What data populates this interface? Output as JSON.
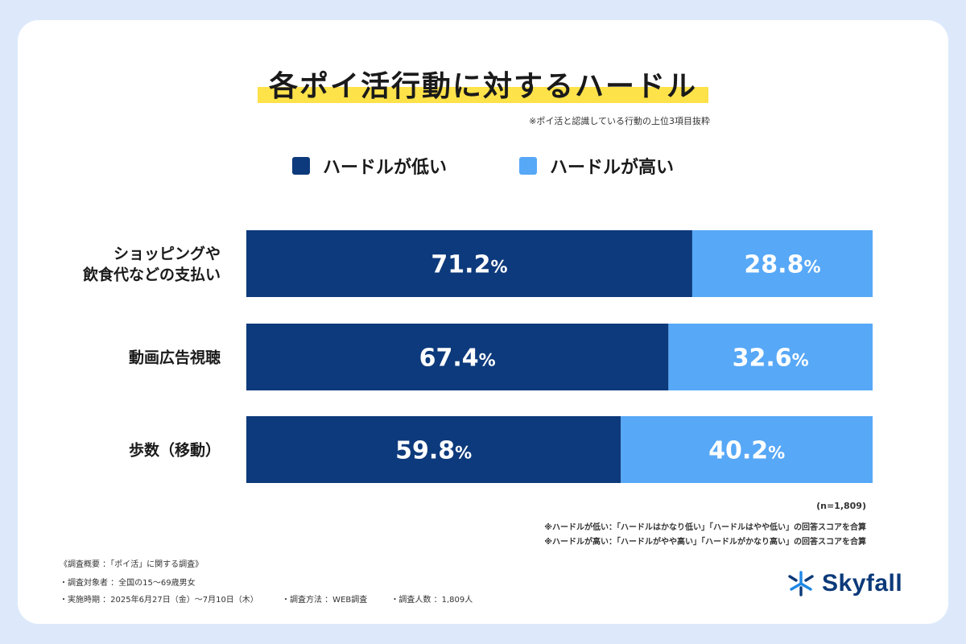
{
  "title": "各ポイ活行動に対するハードル",
  "subtitle": "※ポイ活と認識している行動の上位3項目抜粋",
  "colors": {
    "low": "#0d3a7c",
    "high": "#57a8f7",
    "highlight": "#fde24a"
  },
  "chart_data": {
    "type": "bar",
    "orientation": "horizontal-stacked-100",
    "categories": [
      "ショッピングや\n飲食代などの支払い",
      "動画広告視聴",
      "歩数（移動）"
    ],
    "series": [
      {
        "name": "ハードルが低い",
        "values": [
          71.2,
          67.4,
          59.8
        ]
      },
      {
        "name": "ハードルが高い",
        "values": [
          28.8,
          32.6,
          40.2
        ]
      }
    ],
    "value_suffix": "%",
    "xlim": [
      0,
      100
    ],
    "legend_position": "top-center",
    "grid": false
  },
  "sample_size": "(n=1,809)",
  "notes": [
    "※ハードルが低い：「ハードルはかなり低い」「ハードルはやや低い」の回答スコアを合算",
    "※ハードルが高い：「ハードルがやや高い」「ハードルがかなり高い」の回答スコアを合算"
  ],
  "survey": {
    "heading": "《調査概要 ：「ポイ活」に関する調査》",
    "target": "・調査対象者 ：全国の15〜69歳男女",
    "period": "・実施時期 ：2025年6月27日（金）〜7月10日（木）",
    "method": "・調査方法 ：WEB調査",
    "count": "・調査人数 ：1,809人"
  },
  "logo": {
    "text": "Skyfall",
    "icon": "skyfall-logo-icon"
  }
}
